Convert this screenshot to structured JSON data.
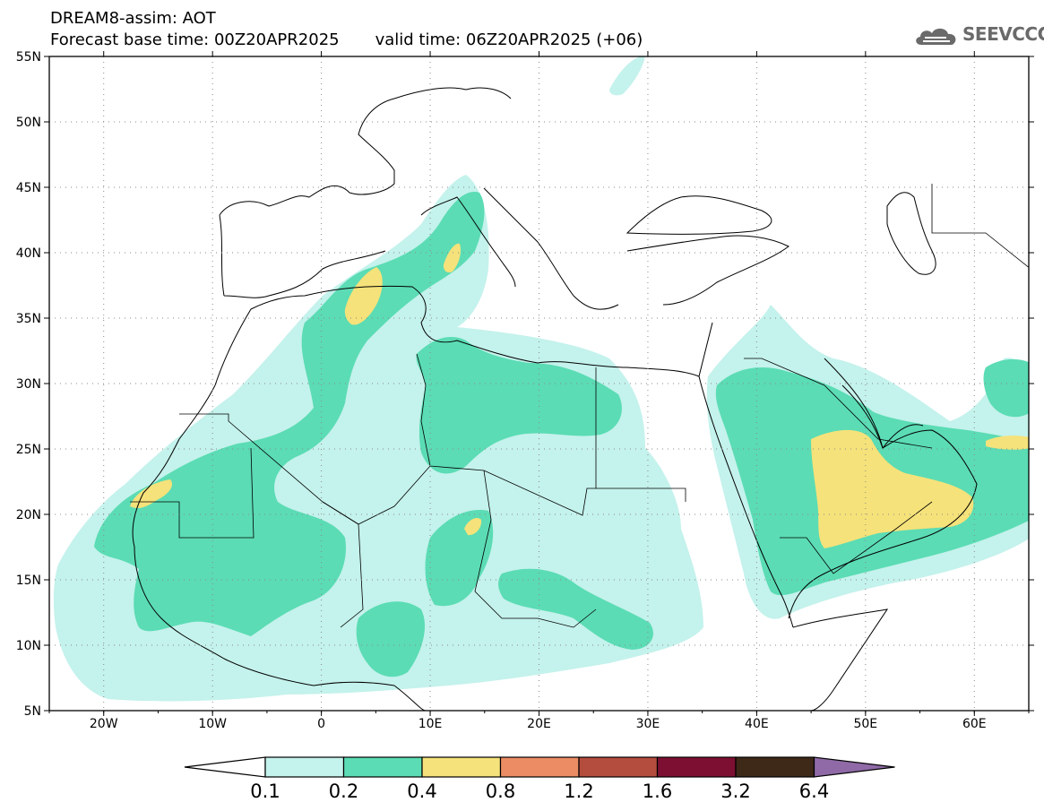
{
  "header": {
    "title": "DREAM8-assim: AOT",
    "base_time": "Forecast base time: 00Z20APR2025",
    "valid_time": "valid time: 06Z20APR2025 (+06)"
  },
  "logo": {
    "text": "SEEVCCC",
    "icon": "cloud-icon"
  },
  "map": {
    "lat_labels": [
      "55N",
      "50N",
      "45N",
      "40N",
      "35N",
      "30N",
      "25N",
      "20N",
      "15N",
      "10N",
      "5N"
    ],
    "lon_labels": [
      "20W",
      "10W",
      "0",
      "10E",
      "20E",
      "30E",
      "40E",
      "50E",
      "60E"
    ],
    "extent": {
      "lon": [
        -25,
        65
      ],
      "lat": [
        5,
        55
      ]
    },
    "gridlines": "dotted"
  },
  "colorbar": {
    "labels": [
      "0.1",
      "0.2",
      "0.4",
      "0.8",
      "1.2",
      "1.6",
      "3.2",
      "6.4"
    ],
    "colors": [
      "#c4f2ec",
      "#5bdcb4",
      "#f5e27a",
      "#eb8c64",
      "#b44d3e",
      "#7c0f32",
      "#3e2818",
      "#8f6aa6"
    ],
    "low_arrow_color": "#ffffff",
    "high_arrow_color": "#8f6aa6"
  }
}
